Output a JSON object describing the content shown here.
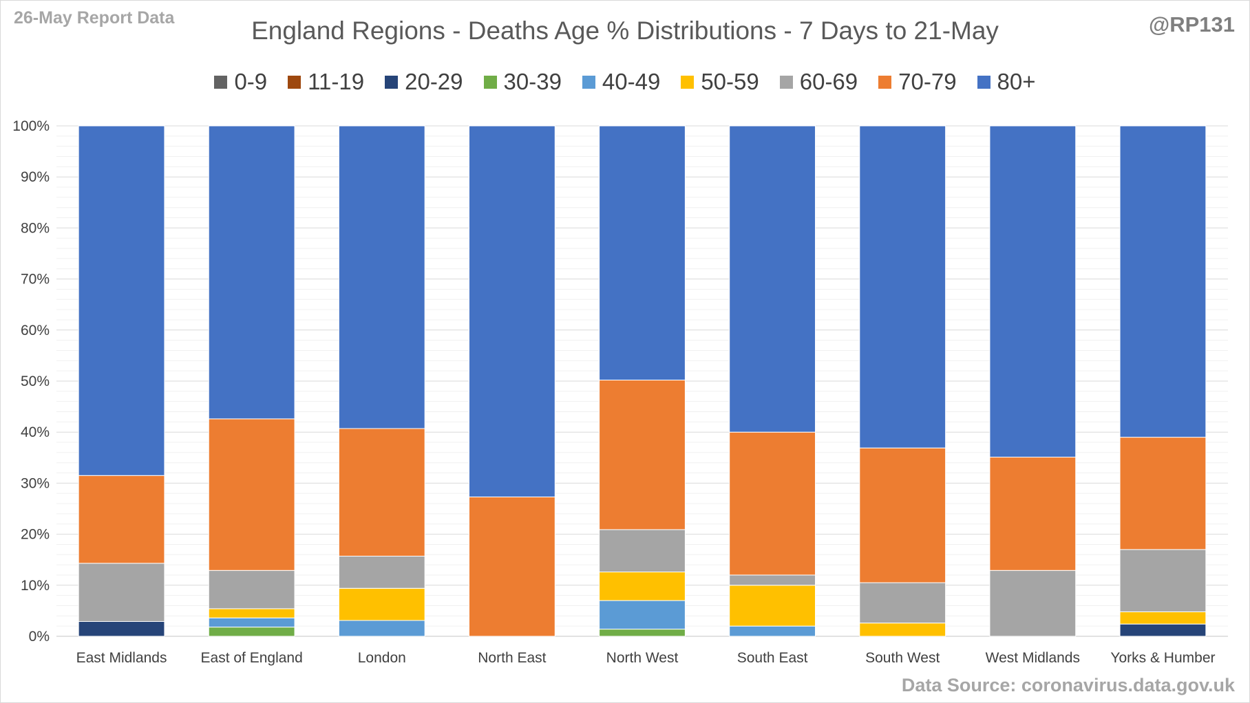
{
  "header": {
    "corner_label": "26-May Report Data",
    "handle": "@RP131",
    "source": "Data Source: coronavirus.data.gov.uk"
  },
  "chart_data": {
    "type": "bar",
    "stacked": true,
    "title": "England Regions - Deaths Age % Distributions - 7 Days to 21-May",
    "xlabel": "",
    "ylabel": "",
    "ylim": [
      0,
      100
    ],
    "yticks": [
      "0%",
      "10%",
      "20%",
      "30%",
      "40%",
      "50%",
      "60%",
      "70%",
      "80%",
      "90%",
      "100%"
    ],
    "grid": true,
    "legend_position": "top",
    "categories": [
      "East Midlands",
      "East of England",
      "London",
      "North East",
      "North West",
      "South East",
      "South West",
      "West Midlands",
      "Yorks & Humber"
    ],
    "series": [
      {
        "name": "0-9",
        "color": "#636363",
        "values": [
          0,
          0,
          0,
          0,
          0,
          0,
          0,
          0,
          0
        ]
      },
      {
        "name": "11-19",
        "color": "#9e480e",
        "values": [
          0,
          0,
          0,
          0,
          0,
          0,
          0,
          0,
          0
        ]
      },
      {
        "name": "20-29",
        "color": "#264478",
        "values": [
          2.9,
          0,
          0,
          0,
          0,
          0,
          0,
          0,
          2.4
        ]
      },
      {
        "name": "30-39",
        "color": "#70ad47",
        "values": [
          0,
          1.8,
          0,
          0,
          1.4,
          0,
          0,
          0,
          0
        ]
      },
      {
        "name": "40-49",
        "color": "#5b9bd5",
        "values": [
          0,
          1.8,
          3.1,
          0,
          5.6,
          2.0,
          0,
          0,
          0
        ]
      },
      {
        "name": "50-59",
        "color": "#ffc000",
        "values": [
          0,
          1.8,
          6.3,
          0,
          5.6,
          8.0,
          2.6,
          0,
          2.4
        ]
      },
      {
        "name": "60-69",
        "color": "#a5a5a5",
        "values": [
          11.4,
          7.5,
          6.3,
          0,
          8.3,
          2.0,
          7.9,
          12.9,
          12.2
        ]
      },
      {
        "name": "70-79",
        "color": "#ed7d31",
        "values": [
          17.2,
          29.7,
          25.0,
          27.3,
          29.3,
          28.0,
          26.4,
          22.2,
          22.0
        ]
      },
      {
        "name": "80+",
        "color": "#4472c4",
        "values": [
          68.5,
          57.4,
          59.3,
          72.7,
          49.8,
          60.0,
          63.1,
          64.9,
          61.0
        ]
      }
    ]
  }
}
